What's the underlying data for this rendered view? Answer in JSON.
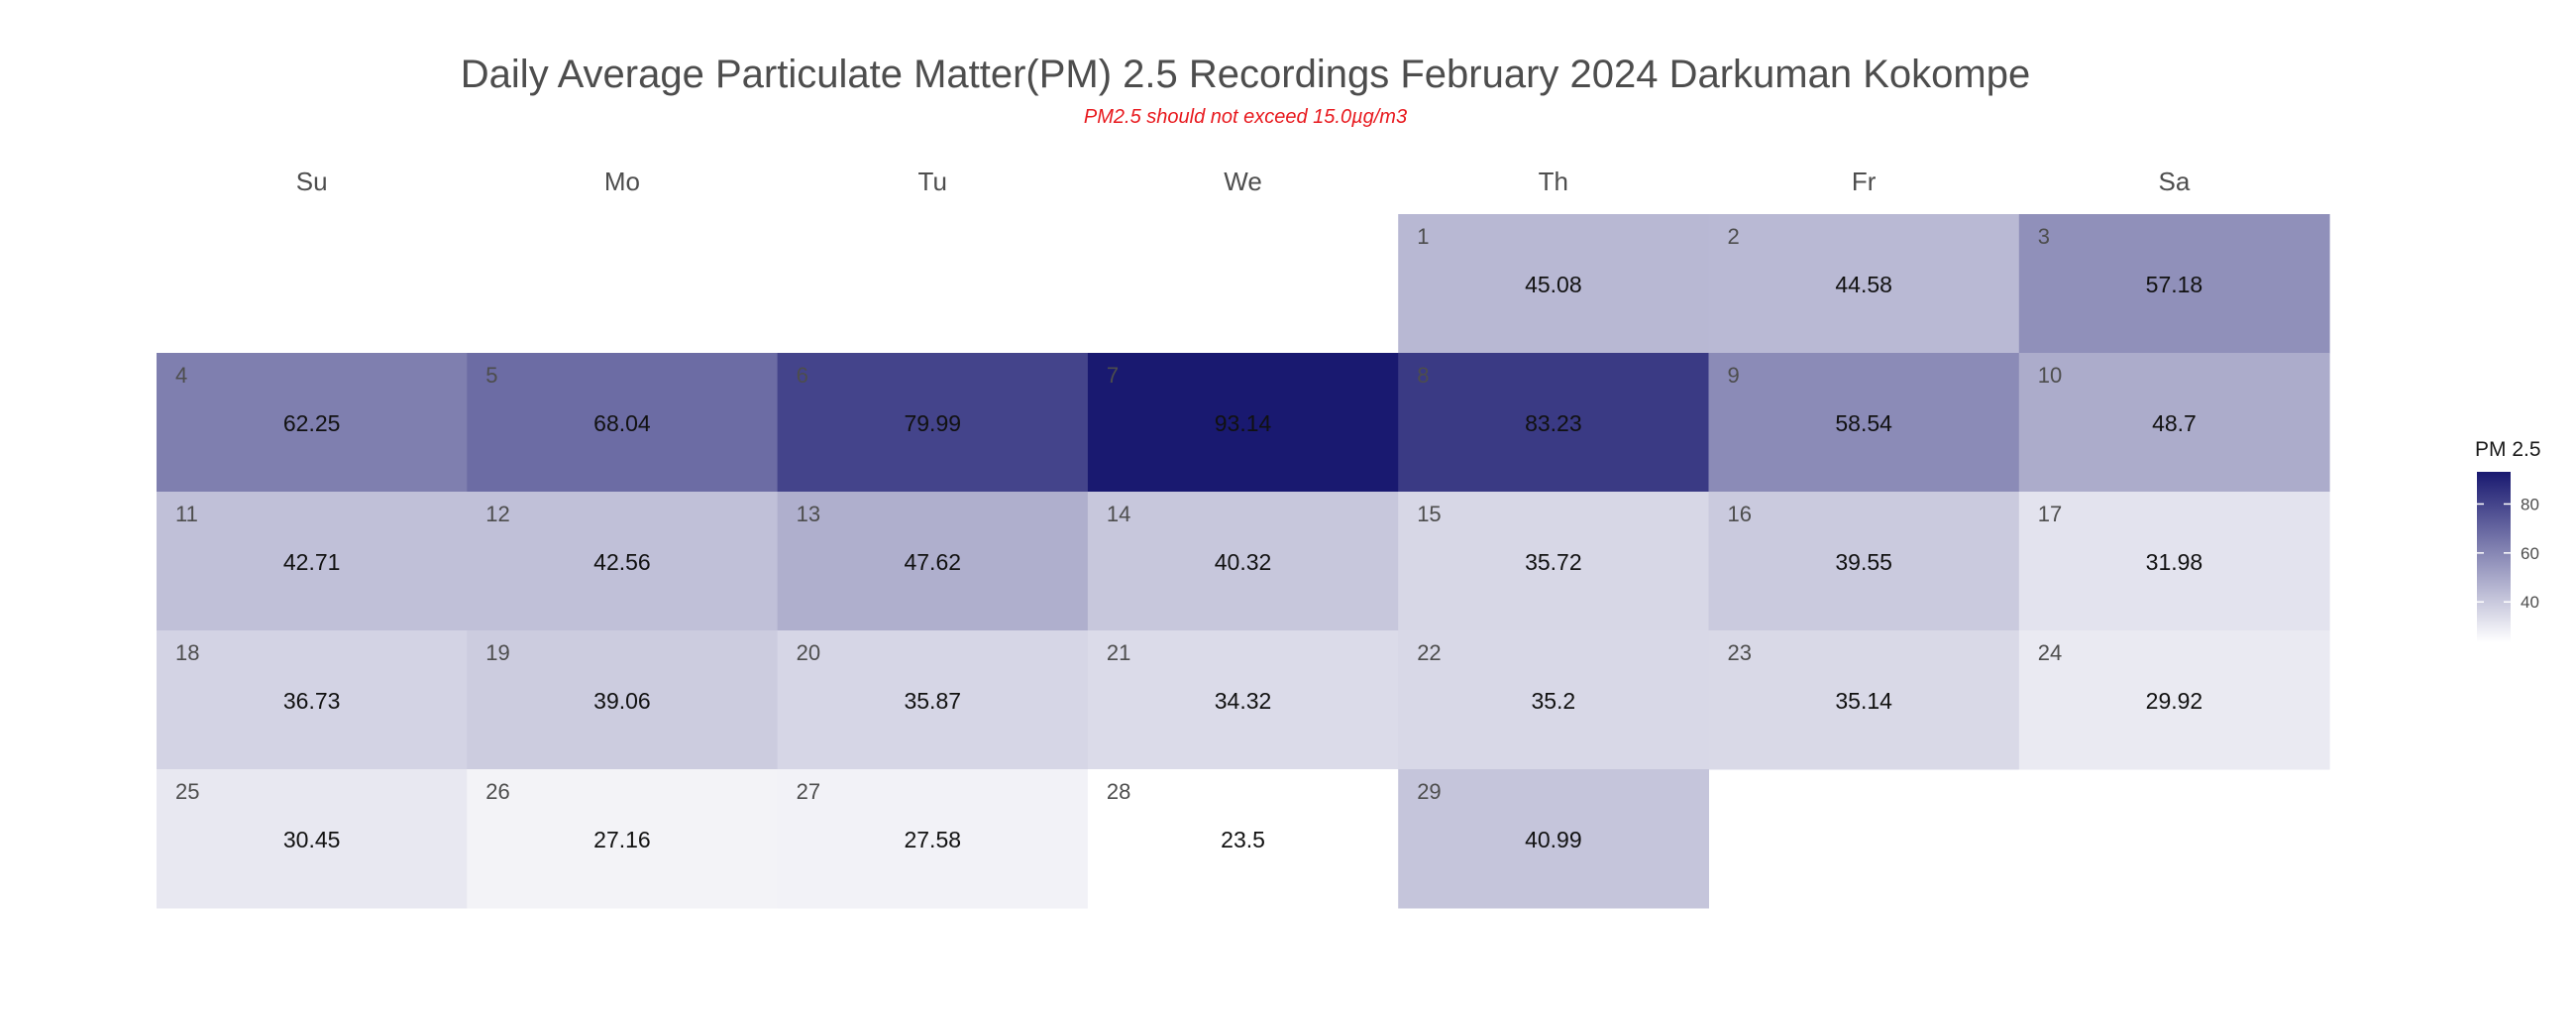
{
  "chart_data": {
    "type": "heatmap",
    "title": "Daily Average Particulate Matter(PM) 2.5 Recordings February 2024 Darkuman Kokompe",
    "subtitle": "PM2.5 should not exceed 15.0µg/m3",
    "weekdays": [
      "Su",
      "Mo",
      "Tu",
      "We",
      "Th",
      "Fr",
      "Sa"
    ],
    "first_weekday_index": 4,
    "days": [
      1,
      2,
      3,
      4,
      5,
      6,
      7,
      8,
      9,
      10,
      11,
      12,
      13,
      14,
      15,
      16,
      17,
      18,
      19,
      20,
      21,
      22,
      23,
      24,
      25,
      26,
      27,
      28,
      29
    ],
    "values": [
      45.08,
      44.58,
      57.18,
      62.25,
      68.04,
      79.99,
      93.14,
      83.23,
      58.54,
      48.7,
      42.71,
      42.56,
      47.62,
      40.32,
      35.72,
      39.55,
      31.98,
      36.73,
      39.06,
      35.87,
      34.32,
      35.2,
      35.14,
      29.92,
      30.45,
      27.16,
      27.58,
      23.5,
      40.99
    ],
    "legend_title": "PM 2.5",
    "legend_ticks": [
      40,
      60,
      80
    ],
    "value_range": [
      23.5,
      93.14
    ],
    "color_low": "#ffffff",
    "color_high": "#191970",
    "subtitle_color": "#e8191e",
    "title_color": "#4d4d4d",
    "legend_position": "right"
  }
}
